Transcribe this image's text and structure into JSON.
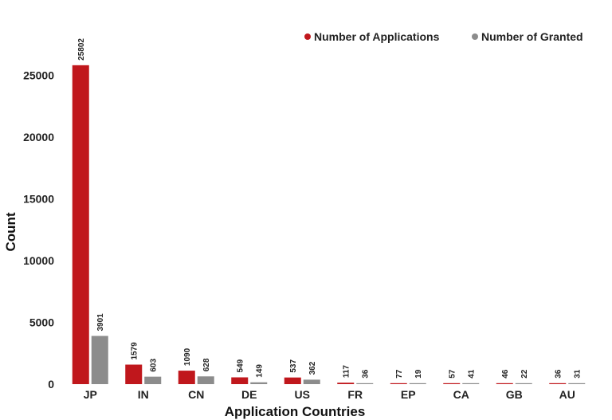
{
  "chart_data": {
    "type": "bar",
    "title": "",
    "xlabel": "Application Countries",
    "ylabel": "Count",
    "categories": [
      "JP",
      "IN",
      "CN",
      "DE",
      "US",
      "FR",
      "EP",
      "CA",
      "GB",
      "AU"
    ],
    "series": [
      {
        "name": "Number of Applications",
        "color": "#C0171C",
        "values": [
          25802,
          1579,
          1090,
          549,
          537,
          117,
          77,
          57,
          46,
          36
        ]
      },
      {
        "name": "Number of Granted",
        "color": "#8C8C8C",
        "values": [
          3901,
          603,
          628,
          149,
          362,
          36,
          19,
          41,
          22,
          31
        ]
      }
    ],
    "y_ticks": [
      0,
      5000,
      10000,
      15000,
      20000,
      25000
    ],
    "ylim": [
      0,
      28500
    ],
    "legend_position": "top-right",
    "grid": false
  }
}
